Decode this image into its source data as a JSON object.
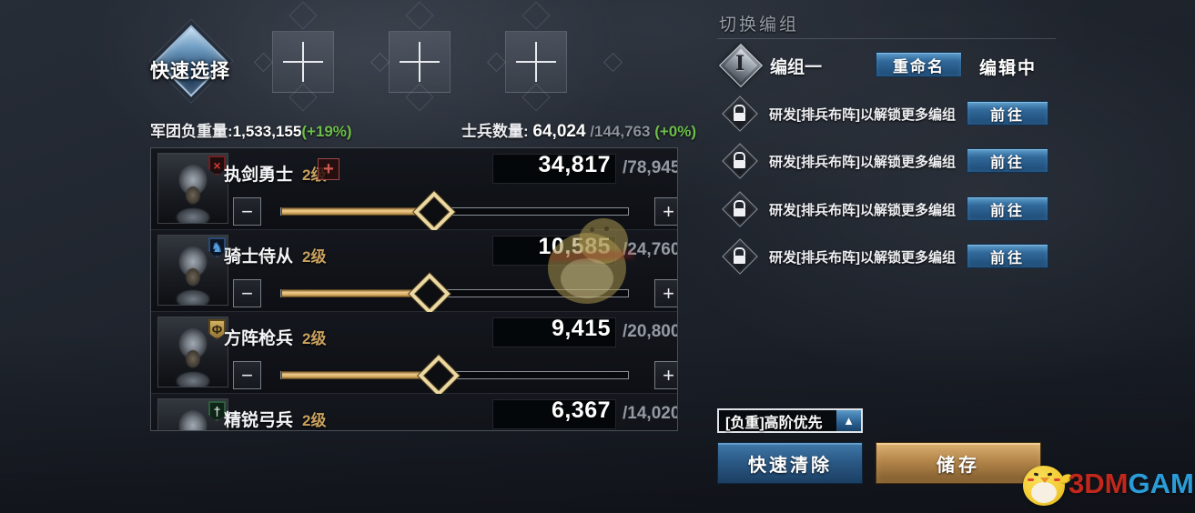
{
  "header": {
    "quick_select_label": "快速选择",
    "empty_slots": [
      "empty",
      "empty",
      "empty"
    ],
    "army_load_label": "军团负重量:",
    "army_load_value": "1,533,155",
    "army_load_bonus": "(+19%)",
    "soldier_count_label": "士兵数量:",
    "soldier_count_value": "64,024",
    "soldier_count_max": "/144,763",
    "soldier_count_bonus": "(+0%)"
  },
  "troop_ui": {
    "minus_glyph": "−",
    "plus_glyph": "+",
    "add_glyph": "+"
  },
  "troops": [
    {
      "name": "执剑勇士",
      "level": "2级",
      "count": "34,817",
      "max": "/78,945",
      "badge": "crossed-swords",
      "badge_glyph": "×",
      "has_add_button": true
    },
    {
      "name": "骑士侍从",
      "level": "2级",
      "count": "10,585",
      "max": "/24,760",
      "badge": "horse",
      "badge_glyph": "♞",
      "has_add_button": false
    },
    {
      "name": "方阵枪兵",
      "level": "2级",
      "count": "9,415",
      "max": "/20,800",
      "badge": "spear",
      "badge_glyph": "Φ",
      "has_add_button": false
    },
    {
      "name": "精锐弓兵",
      "level": "2级",
      "count": "6,367",
      "max": "/14,020",
      "badge": "bow",
      "badge_glyph": "†",
      "has_add_button": false
    }
  ],
  "right_panel": {
    "title": "切换编组",
    "group": {
      "icon_numeral": "I",
      "name": "编组一",
      "rename_button": "重命名",
      "status": "编辑中"
    },
    "locked_groups": [
      {
        "text": "研发[排兵布阵]以解锁更多编组",
        "button": "前往"
      },
      {
        "text": "研发[排兵布阵]以解锁更多编组",
        "button": "前往"
      },
      {
        "text": "研发[排兵布阵]以解锁更多编组",
        "button": "前往"
      },
      {
        "text": "研发[排兵布阵]以解锁更多编组",
        "button": "前往"
      }
    ],
    "sort_dropdown": {
      "label": "[负重]高阶优先",
      "arrow": "▲"
    },
    "clear_button": "快速清除",
    "save_button": "储存"
  },
  "watermark": {
    "brand_red": "3DM",
    "brand_blue": "GAME"
  },
  "colors": {
    "bonus_green": "#6dbf49",
    "level_gold": "#c9a15e",
    "slider_gold": "#d9ae67",
    "button_blue": "#2f6899",
    "button_gold": "#b3854a",
    "brand_red": "#c1271b",
    "brand_blue": "#2b9cd8"
  }
}
